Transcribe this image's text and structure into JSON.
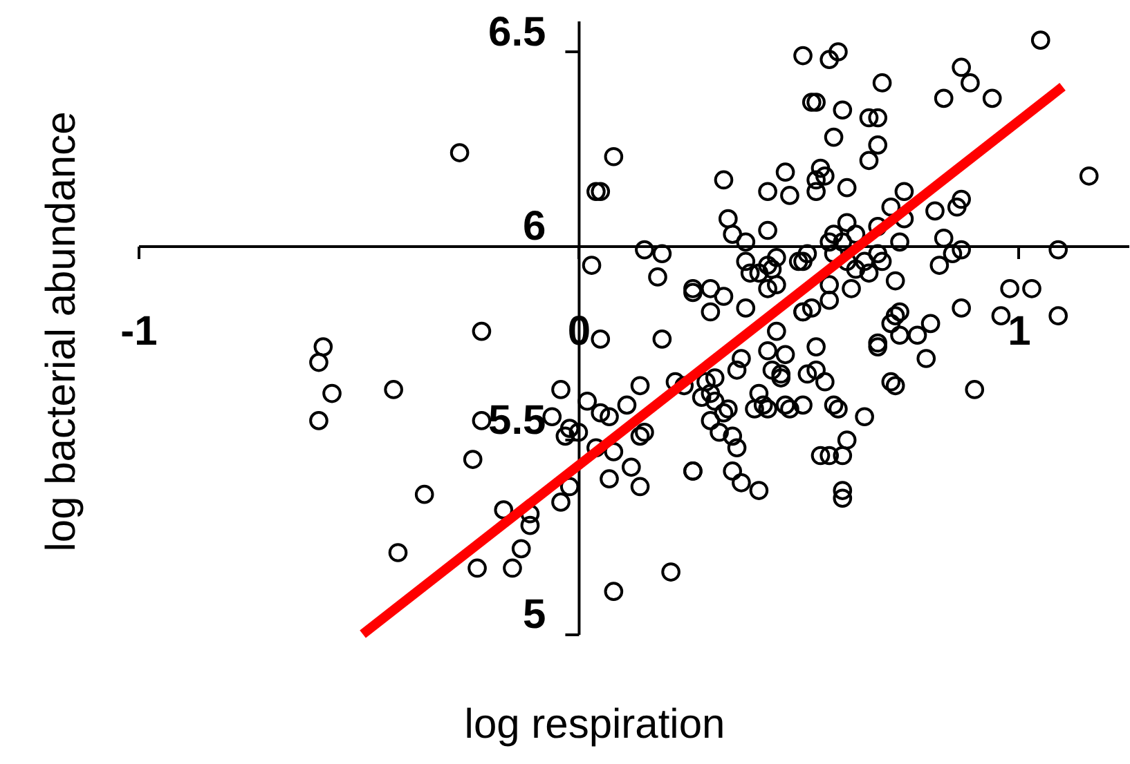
{
  "chart_data": {
    "type": "scatter",
    "xlabel": "log respiration",
    "ylabel": "log bacterial abundance",
    "xlim": [
      -1,
      1.25
    ],
    "ylim": [
      5,
      6.58
    ],
    "xticks": [
      -1,
      0,
      1
    ],
    "yticks": [
      5,
      5.5,
      6,
      6.5
    ],
    "grid": false,
    "series": [
      {
        "marker": "circle",
        "color": "#000000",
        "x": [
          -0.27,
          0.08,
          0.04,
          0.05,
          0.15,
          0.19,
          0.03,
          0.18,
          0.26,
          -0.22,
          0.05,
          0.19,
          -0.58,
          -0.59,
          -0.56,
          -0.42,
          -0.59,
          -0.04,
          0.02,
          0.11,
          0.14,
          0.22,
          -0.06,
          -0.22,
          -0.02,
          -0.03,
          0.0,
          0.05,
          0.07,
          0.15,
          0.14,
          0.04,
          0.08,
          -0.24,
          0.26,
          0.12,
          0.07,
          0.14,
          -0.02,
          -0.04,
          -0.35,
          -0.17,
          -0.11,
          -0.11,
          -0.13,
          -0.41,
          -0.23,
          -0.15,
          0.08,
          0.21,
          1.05,
          0.51,
          0.57,
          0.59,
          0.87,
          0.89,
          0.69,
          0.83,
          0.94,
          0.53,
          0.54,
          0.6,
          0.66,
          0.68,
          0.58,
          0.68,
          0.66,
          0.33,
          0.47,
          0.55,
          0.56,
          0.54,
          0.43,
          0.48,
          0.54,
          0.61,
          1.16,
          0.74,
          0.71,
          0.74,
          0.81,
          0.87,
          0.86,
          0.34,
          0.35,
          0.43,
          0.38,
          0.58,
          0.61,
          0.57,
          0.6,
          0.63,
          0.68,
          0.73,
          0.83,
          0.87,
          0.85,
          1.09,
          0.38,
          0.39,
          0.41,
          0.45,
          0.44,
          0.43,
          0.5,
          0.51,
          0.52,
          0.58,
          0.61,
          0.63,
          0.65,
          0.66,
          0.68,
          0.69,
          0.82,
          0.72,
          0.98,
          1.03,
          0.26,
          0.3,
          0.33,
          0.43,
          0.57,
          0.62,
          0.3,
          0.38,
          0.45,
          0.51,
          0.51,
          0.53,
          0.57,
          0.73,
          0.72,
          0.71,
          0.8,
          0.73,
          0.77,
          0.87,
          0.96,
          1.09,
          0.68,
          0.68,
          0.79,
          0.45,
          0.43,
          0.47,
          0.54,
          0.37,
          0.36,
          0.44,
          0.46,
          0.46,
          0.54,
          0.52,
          0.56,
          0.24,
          0.29,
          0.31,
          0.3,
          0.28,
          0.31,
          0.41,
          0.42,
          0.4,
          0.43,
          0.47,
          0.48,
          0.51,
          0.58,
          0.59,
          0.71,
          0.72,
          0.9,
          0.65,
          0.3,
          0.33,
          0.34,
          0.32,
          0.35,
          0.36,
          0.55,
          0.57,
          0.6,
          0.61,
          0.26,
          0.35,
          0.37,
          0.41,
          0.6,
          0.6
        ],
        "values": [
          6.24,
          6.23,
          6.14,
          6.14,
          5.99,
          5.98,
          5.95,
          5.92,
          5.88,
          5.78,
          5.76,
          5.76,
          5.74,
          5.7,
          5.62,
          5.63,
          5.55,
          5.63,
          5.6,
          5.59,
          5.64,
          5.65,
          5.56,
          5.55,
          5.53,
          5.51,
          5.52,
          5.57,
          5.56,
          5.52,
          5.51,
          5.48,
          5.47,
          5.45,
          5.42,
          5.43,
          5.4,
          5.38,
          5.38,
          5.34,
          5.36,
          5.32,
          5.31,
          5.28,
          5.22,
          5.21,
          5.17,
          5.17,
          5.11,
          5.16,
          6.53,
          6.49,
          6.48,
          6.5,
          6.46,
          6.42,
          6.42,
          6.38,
          6.38,
          6.37,
          6.37,
          6.35,
          6.33,
          6.33,
          6.28,
          6.26,
          6.22,
          6.17,
          6.19,
          6.2,
          6.18,
          6.17,
          6.14,
          6.13,
          6.14,
          6.15,
          6.18,
          6.14,
          6.1,
          6.07,
          6.09,
          6.12,
          6.1,
          6.07,
          6.03,
          6.04,
          6.01,
          6.03,
          6.06,
          6.01,
          6.01,
          6.03,
          6.05,
          6.01,
          6.02,
          5.99,
          5.98,
          5.99,
          5.96,
          5.93,
          5.93,
          5.97,
          5.94,
          5.95,
          5.96,
          5.96,
          5.98,
          5.98,
          5.96,
          5.94,
          5.96,
          5.93,
          5.98,
          5.96,
          5.95,
          5.91,
          5.89,
          5.89,
          5.89,
          5.89,
          5.87,
          5.89,
          5.9,
          5.89,
          5.83,
          5.84,
          5.9,
          5.83,
          5.83,
          5.84,
          5.86,
          5.83,
          5.82,
          5.8,
          5.8,
          5.77,
          5.77,
          5.84,
          5.82,
          5.82,
          5.75,
          5.74,
          5.71,
          5.78,
          5.73,
          5.72,
          5.74,
          5.71,
          5.68,
          5.68,
          5.67,
          5.66,
          5.68,
          5.67,
          5.65,
          5.64,
          5.65,
          5.66,
          5.62,
          5.61,
          5.6,
          5.62,
          5.59,
          5.58,
          5.58,
          5.59,
          5.58,
          5.59,
          5.59,
          5.58,
          5.65,
          5.64,
          5.63,
          5.56,
          5.55,
          5.57,
          5.58,
          5.52,
          5.51,
          5.48,
          5.46,
          5.46,
          5.46,
          5.5,
          5.42,
          5.42,
          5.39,
          5.37,
          5.37,
          5.35
        ]
      },
      {
        "type": "line",
        "marker": "none",
        "line_style": "solid",
        "color": "#ff0000",
        "x": [
          -0.49,
          1.1
        ],
        "values": [
          5.0,
          6.41
        ]
      }
    ]
  }
}
